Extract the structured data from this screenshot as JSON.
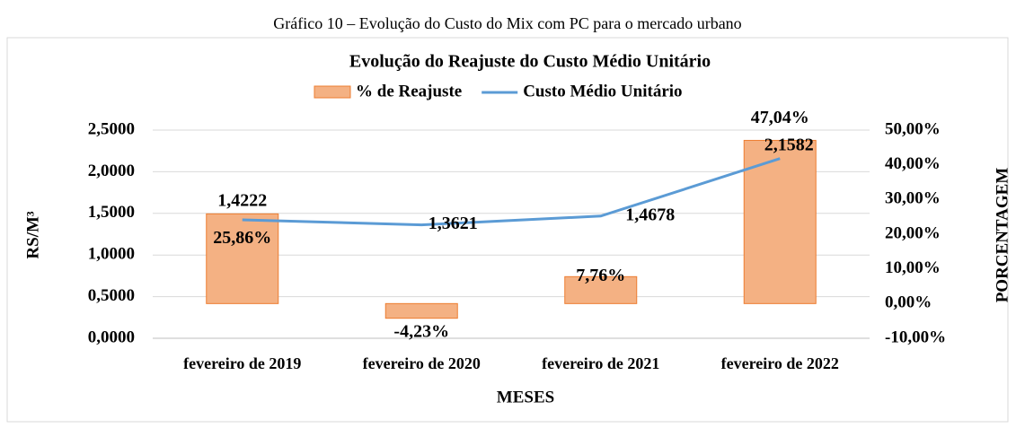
{
  "caption": "Gráfico 10 – Evolução do Custo do Mix com PC para o mercado urbano",
  "chart_data": {
    "type": "bar-line",
    "title": "Evolução do Reajuste do Custo Médio Unitário",
    "x_label": "MESES",
    "y_label": "RS/M³",
    "y2_label": "PORCENTAGEM",
    "categories": [
      "fevereiro de 2019",
      "fevereiro de 2020",
      "fevereiro de 2021",
      "fevereiro de 2022"
    ],
    "series": [
      {
        "name": "% de Reajuste",
        "type": "bar",
        "axis": "y2",
        "color": "#f4b183",
        "edge_color": "#ed7d31",
        "values": [
          25.86,
          -4.23,
          7.76,
          47.04
        ],
        "value_labels": [
          "25,86%",
          "-4,23%",
          "7,76%",
          "47,04%"
        ]
      },
      {
        "name": "Custo Médio Unitário",
        "type": "line",
        "axis": "y",
        "color": "#5b9bd5",
        "values": [
          1.4222,
          1.3621,
          1.4678,
          2.1582
        ],
        "value_labels": [
          "1,4222",
          "1,3621",
          "1,4678",
          "2,1582"
        ]
      }
    ],
    "ylim": [
      0,
      2.5
    ],
    "yticks": [
      {
        "value": 0,
        "label": "0,0000"
      },
      {
        "value": 0.5,
        "label": "0,5000"
      },
      {
        "value": 1,
        "label": "1,0000"
      },
      {
        "value": 1.5,
        "label": "1,5000"
      },
      {
        "value": 2,
        "label": "2,0000"
      },
      {
        "value": 2.5,
        "label": "2,5000"
      }
    ],
    "y2lim": [
      -10,
      50
    ],
    "y2ticks": [
      {
        "value": -10,
        "label": "-10,00%"
      },
      {
        "value": 0,
        "label": "0,00%"
      },
      {
        "value": 10,
        "label": "10,00%"
      },
      {
        "value": 20,
        "label": "20,00%"
      },
      {
        "value": 30,
        "label": "30,00%"
      },
      {
        "value": 40,
        "label": "40,00%"
      },
      {
        "value": 50,
        "label": "50,00%"
      }
    ],
    "grid": true,
    "legend": "top"
  }
}
